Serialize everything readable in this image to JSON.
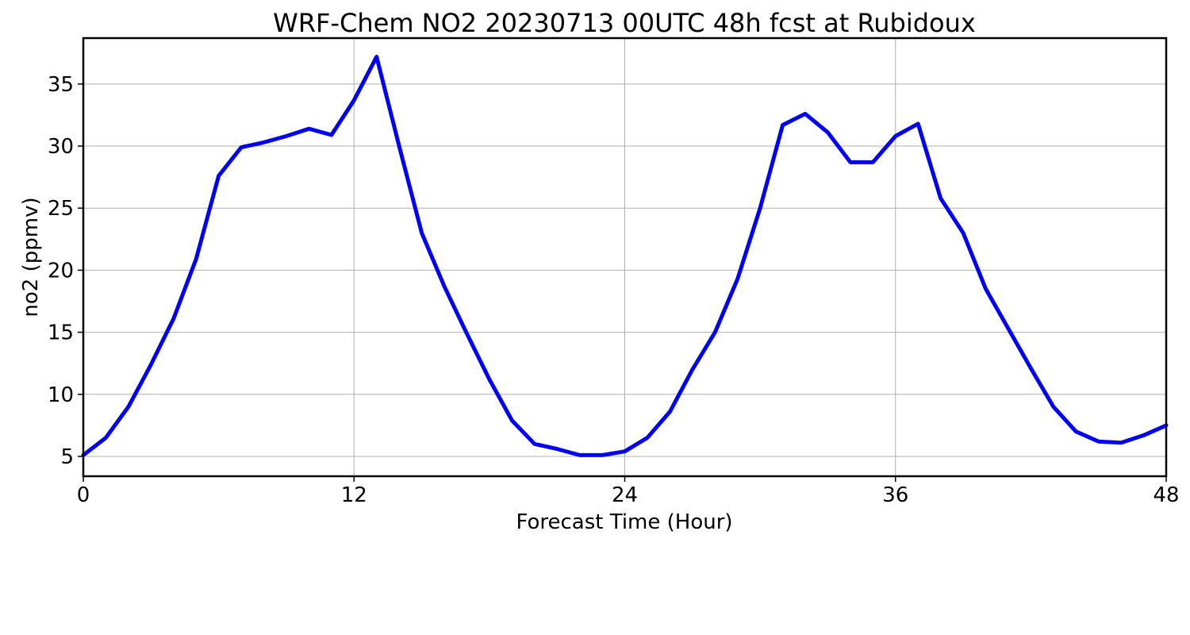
{
  "chart_data": {
    "type": "line",
    "title": "WRF-Chem NO2  20230713 00UTC 48h fcst at Rubidoux",
    "xlabel": "Forecast Time (Hour)",
    "ylabel": "no2  (ppmv)",
    "xlim": [
      0,
      48
    ],
    "ylim": [
      3.4,
      38.7
    ],
    "xticks": [
      0,
      12,
      24,
      36,
      48
    ],
    "yticks": [
      5,
      10,
      15,
      20,
      25,
      30,
      35
    ],
    "grid": true,
    "series_color": "#0000ff",
    "series": [
      {
        "x": [
          0,
          1,
          2,
          3,
          4,
          5,
          6,
          7,
          8,
          9,
          10,
          11,
          12,
          13,
          14,
          15,
          16,
          17,
          18,
          19,
          20,
          21,
          22,
          23,
          24,
          25,
          26,
          27,
          28,
          29,
          30,
          31,
          32,
          33,
          34,
          35,
          36,
          37,
          38,
          39,
          40,
          41,
          42,
          43,
          44,
          45,
          46,
          47,
          48
        ],
        "values": [
          5.1,
          6.5,
          9.0,
          12.4,
          16.1,
          20.9,
          27.6,
          29.9,
          30.3,
          30.8,
          31.4,
          30.9,
          33.7,
          37.2,
          30.0,
          23.0,
          18.7,
          14.9,
          11.2,
          7.9,
          6.0,
          5.6,
          5.1,
          5.1,
          5.4,
          6.5,
          8.6,
          12.0,
          15.0,
          19.3,
          25.0,
          31.7,
          32.6,
          31.1,
          28.7,
          28.7,
          30.8,
          31.8,
          25.8,
          23.0,
          18.5,
          15.3,
          12.1,
          9.0,
          7.0,
          6.2,
          6.1,
          6.7,
          7.5
        ]
      }
    ]
  }
}
